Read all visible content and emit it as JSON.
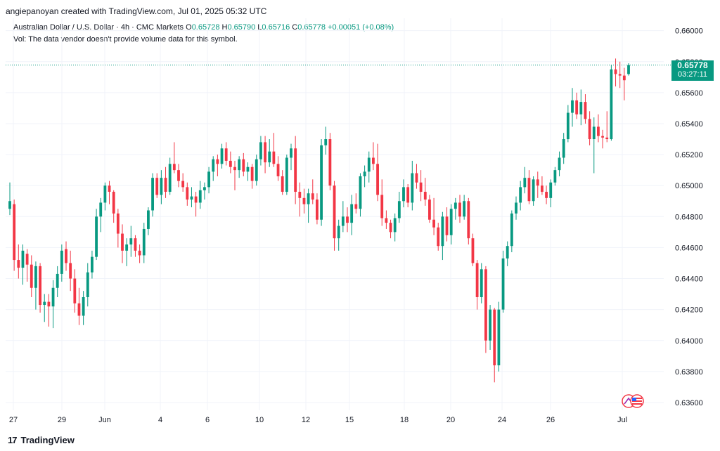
{
  "header": {
    "creator_line": "angiepanoyan created with TradingView.com, Jul 01, 2025 05:32 UTC"
  },
  "symbol_line": {
    "name": "Australian Dollar / U.S. Dollar · 4h · CMC Markets",
    "open_label": "O",
    "open": "0.65728",
    "high_label": "H",
    "high": "0.65790",
    "low_label": "L",
    "low": "0.65716",
    "close_label": "C",
    "close": "0.65778",
    "change": "+0.00051 (+0.08%)"
  },
  "vol_note": "Vol: The data vendor doesn't provide volume data for this symbol.",
  "last_price_tag": {
    "price": "0.65778",
    "countdown": "03:27:11"
  },
  "brand": {
    "name": "TradingView"
  },
  "colors": {
    "up": "#089981",
    "down": "#f23645",
    "grid": "#f0f3fa",
    "axis_text": "#131722"
  },
  "chart_data": {
    "type": "candlestick",
    "ylim": [
      0.6355,
      0.6608
    ],
    "y_ticks": [
      "0.66000",
      "0.65800",
      "0.65600",
      "0.65400",
      "0.65200",
      "0.65000",
      "0.64800",
      "0.64600",
      "0.64400",
      "0.64200",
      "0.64000",
      "0.63800",
      "0.63600"
    ],
    "x_ticks": [
      "27",
      "29",
      "Jun",
      "4",
      "6",
      "10",
      "12",
      "15",
      "18",
      "20",
      "24",
      "26",
      "Jul"
    ],
    "last_price": 0.65778,
    "candles": [
      {
        "o": 0.6485,
        "h": 0.6502,
        "l": 0.6481,
        "c": 0.649
      },
      {
        "o": 0.6488,
        "h": 0.6491,
        "l": 0.6445,
        "c": 0.6452
      },
      {
        "o": 0.6452,
        "h": 0.6462,
        "l": 0.644,
        "c": 0.6447
      },
      {
        "o": 0.6447,
        "h": 0.6462,
        "l": 0.6436,
        "c": 0.6458
      },
      {
        "o": 0.6456,
        "h": 0.6459,
        "l": 0.6438,
        "c": 0.6449
      },
      {
        "o": 0.6449,
        "h": 0.6455,
        "l": 0.6428,
        "c": 0.6434
      },
      {
        "o": 0.6434,
        "h": 0.6451,
        "l": 0.642,
        "c": 0.6448
      },
      {
        "o": 0.6448,
        "h": 0.645,
        "l": 0.6418,
        "c": 0.6423
      },
      {
        "o": 0.6423,
        "h": 0.643,
        "l": 0.6412,
        "c": 0.6425
      },
      {
        "o": 0.6425,
        "h": 0.643,
        "l": 0.6409,
        "c": 0.6422
      },
      {
        "o": 0.6422,
        "h": 0.6439,
        "l": 0.6408,
        "c": 0.6434
      },
      {
        "o": 0.6434,
        "h": 0.6448,
        "l": 0.6428,
        "c": 0.6443
      },
      {
        "o": 0.6443,
        "h": 0.6462,
        "l": 0.6438,
        "c": 0.6458
      },
      {
        "o": 0.6459,
        "h": 0.6464,
        "l": 0.6445,
        "c": 0.645
      },
      {
        "o": 0.645,
        "h": 0.6458,
        "l": 0.6432,
        "c": 0.644
      },
      {
        "o": 0.644,
        "h": 0.6446,
        "l": 0.6418,
        "c": 0.6424
      },
      {
        "o": 0.6424,
        "h": 0.6434,
        "l": 0.641,
        "c": 0.6416
      },
      {
        "o": 0.6416,
        "h": 0.6432,
        "l": 0.641,
        "c": 0.6428
      },
      {
        "o": 0.6428,
        "h": 0.645,
        "l": 0.6422,
        "c": 0.6444
      },
      {
        "o": 0.6444,
        "h": 0.6458,
        "l": 0.644,
        "c": 0.6454
      },
      {
        "o": 0.6454,
        "h": 0.6485,
        "l": 0.6452,
        "c": 0.648
      },
      {
        "o": 0.648,
        "h": 0.6492,
        "l": 0.647,
        "c": 0.6489
      },
      {
        "o": 0.6489,
        "h": 0.6502,
        "l": 0.6484,
        "c": 0.65
      },
      {
        "o": 0.65,
        "h": 0.6503,
        "l": 0.6488,
        "c": 0.6496
      },
      {
        "o": 0.6496,
        "h": 0.6497,
        "l": 0.6476,
        "c": 0.6482
      },
      {
        "o": 0.6482,
        "h": 0.6485,
        "l": 0.646,
        "c": 0.6469
      },
      {
        "o": 0.6469,
        "h": 0.6475,
        "l": 0.645,
        "c": 0.6458
      },
      {
        "o": 0.6458,
        "h": 0.6466,
        "l": 0.6448,
        "c": 0.6462
      },
      {
        "o": 0.6462,
        "h": 0.6474,
        "l": 0.6454,
        "c": 0.6466
      },
      {
        "o": 0.6466,
        "h": 0.6468,
        "l": 0.6454,
        "c": 0.6458
      },
      {
        "o": 0.6458,
        "h": 0.6462,
        "l": 0.645,
        "c": 0.6455
      },
      {
        "o": 0.6455,
        "h": 0.6476,
        "l": 0.645,
        "c": 0.6472
      },
      {
        "o": 0.6472,
        "h": 0.6486,
        "l": 0.6468,
        "c": 0.6484
      },
      {
        "o": 0.6484,
        "h": 0.6508,
        "l": 0.648,
        "c": 0.6505
      },
      {
        "o": 0.6505,
        "h": 0.6508,
        "l": 0.6492,
        "c": 0.6494
      },
      {
        "o": 0.6494,
        "h": 0.651,
        "l": 0.6488,
        "c": 0.6505
      },
      {
        "o": 0.6505,
        "h": 0.6512,
        "l": 0.6492,
        "c": 0.6496
      },
      {
        "o": 0.6496,
        "h": 0.6518,
        "l": 0.6494,
        "c": 0.6514
      },
      {
        "o": 0.6514,
        "h": 0.6528,
        "l": 0.6508,
        "c": 0.651
      },
      {
        "o": 0.651,
        "h": 0.6514,
        "l": 0.6499,
        "c": 0.6503
      },
      {
        "o": 0.6503,
        "h": 0.6508,
        "l": 0.6496,
        "c": 0.6499
      },
      {
        "o": 0.6499,
        "h": 0.6502,
        "l": 0.6487,
        "c": 0.6491
      },
      {
        "o": 0.6491,
        "h": 0.6499,
        "l": 0.6486,
        "c": 0.6493
      },
      {
        "o": 0.6493,
        "h": 0.6496,
        "l": 0.648,
        "c": 0.6489
      },
      {
        "o": 0.6489,
        "h": 0.6503,
        "l": 0.6485,
        "c": 0.6497
      },
      {
        "o": 0.6497,
        "h": 0.6502,
        "l": 0.6491,
        "c": 0.6499
      },
      {
        "o": 0.6499,
        "h": 0.6512,
        "l": 0.6495,
        "c": 0.6509
      },
      {
        "o": 0.6509,
        "h": 0.6519,
        "l": 0.6503,
        "c": 0.6517
      },
      {
        "o": 0.6517,
        "h": 0.652,
        "l": 0.6506,
        "c": 0.6514
      },
      {
        "o": 0.6514,
        "h": 0.6527,
        "l": 0.6511,
        "c": 0.6524
      },
      {
        "o": 0.6524,
        "h": 0.6528,
        "l": 0.6513,
        "c": 0.6516
      },
      {
        "o": 0.6516,
        "h": 0.6522,
        "l": 0.6508,
        "c": 0.6512
      },
      {
        "o": 0.6512,
        "h": 0.6516,
        "l": 0.6497,
        "c": 0.651
      },
      {
        "o": 0.651,
        "h": 0.6519,
        "l": 0.6505,
        "c": 0.6517
      },
      {
        "o": 0.6517,
        "h": 0.6521,
        "l": 0.6506,
        "c": 0.6509
      },
      {
        "o": 0.6509,
        "h": 0.6515,
        "l": 0.6503,
        "c": 0.6512
      },
      {
        "o": 0.6512,
        "h": 0.6514,
        "l": 0.6498,
        "c": 0.6503
      },
      {
        "o": 0.6503,
        "h": 0.652,
        "l": 0.65,
        "c": 0.6517
      },
      {
        "o": 0.6517,
        "h": 0.6532,
        "l": 0.6513,
        "c": 0.6528
      },
      {
        "o": 0.6528,
        "h": 0.6532,
        "l": 0.6508,
        "c": 0.6515
      },
      {
        "o": 0.6515,
        "h": 0.653,
        "l": 0.6512,
        "c": 0.6522
      },
      {
        "o": 0.6522,
        "h": 0.6534,
        "l": 0.6512,
        "c": 0.6514
      },
      {
        "o": 0.6514,
        "h": 0.6519,
        "l": 0.6503,
        "c": 0.6506
      },
      {
        "o": 0.6506,
        "h": 0.651,
        "l": 0.6494,
        "c": 0.6496
      },
      {
        "o": 0.6496,
        "h": 0.652,
        "l": 0.6494,
        "c": 0.6518
      },
      {
        "o": 0.6518,
        "h": 0.6527,
        "l": 0.651,
        "c": 0.6524
      },
      {
        "o": 0.6524,
        "h": 0.6532,
        "l": 0.6488,
        "c": 0.6496
      },
      {
        "o": 0.6496,
        "h": 0.6502,
        "l": 0.648,
        "c": 0.6492
      },
      {
        "o": 0.6492,
        "h": 0.6498,
        "l": 0.6482,
        "c": 0.6488
      },
      {
        "o": 0.6488,
        "h": 0.6498,
        "l": 0.6476,
        "c": 0.6495
      },
      {
        "o": 0.6495,
        "h": 0.6504,
        "l": 0.6488,
        "c": 0.6491
      },
      {
        "o": 0.6491,
        "h": 0.6495,
        "l": 0.6475,
        "c": 0.6478
      },
      {
        "o": 0.6478,
        "h": 0.653,
        "l": 0.6474,
        "c": 0.6526
      },
      {
        "o": 0.6526,
        "h": 0.6538,
        "l": 0.652,
        "c": 0.653
      },
      {
        "o": 0.653,
        "h": 0.6534,
        "l": 0.6497,
        "c": 0.65
      },
      {
        "o": 0.65,
        "h": 0.6503,
        "l": 0.6458,
        "c": 0.6466
      },
      {
        "o": 0.6466,
        "h": 0.6478,
        "l": 0.6458,
        "c": 0.6474
      },
      {
        "o": 0.6474,
        "h": 0.649,
        "l": 0.647,
        "c": 0.648
      },
      {
        "o": 0.648,
        "h": 0.6486,
        "l": 0.647,
        "c": 0.6476
      },
      {
        "o": 0.6476,
        "h": 0.6494,
        "l": 0.6468,
        "c": 0.6488
      },
      {
        "o": 0.6488,
        "h": 0.6495,
        "l": 0.6482,
        "c": 0.6485
      },
      {
        "o": 0.6485,
        "h": 0.6508,
        "l": 0.648,
        "c": 0.6506
      },
      {
        "o": 0.6506,
        "h": 0.6513,
        "l": 0.6499,
        "c": 0.6509
      },
      {
        "o": 0.6509,
        "h": 0.6522,
        "l": 0.6502,
        "c": 0.6518
      },
      {
        "o": 0.6518,
        "h": 0.6528,
        "l": 0.651,
        "c": 0.6514
      },
      {
        "o": 0.6514,
        "h": 0.6527,
        "l": 0.649,
        "c": 0.6494
      },
      {
        "o": 0.6494,
        "h": 0.6504,
        "l": 0.6474,
        "c": 0.6479
      },
      {
        "o": 0.6479,
        "h": 0.6484,
        "l": 0.6472,
        "c": 0.6476
      },
      {
        "o": 0.6476,
        "h": 0.6478,
        "l": 0.6466,
        "c": 0.647
      },
      {
        "o": 0.647,
        "h": 0.6482,
        "l": 0.6464,
        "c": 0.6479
      },
      {
        "o": 0.6479,
        "h": 0.6496,
        "l": 0.6476,
        "c": 0.649
      },
      {
        "o": 0.649,
        "h": 0.6504,
        "l": 0.6486,
        "c": 0.6499
      },
      {
        "o": 0.6499,
        "h": 0.6501,
        "l": 0.6486,
        "c": 0.6489
      },
      {
        "o": 0.6489,
        "h": 0.6516,
        "l": 0.6484,
        "c": 0.6508
      },
      {
        "o": 0.6508,
        "h": 0.6514,
        "l": 0.6498,
        "c": 0.6502
      },
      {
        "o": 0.6502,
        "h": 0.651,
        "l": 0.649,
        "c": 0.6496
      },
      {
        "o": 0.6496,
        "h": 0.6505,
        "l": 0.6487,
        "c": 0.6491
      },
      {
        "o": 0.6491,
        "h": 0.6494,
        "l": 0.6476,
        "c": 0.6478
      },
      {
        "o": 0.6478,
        "h": 0.6492,
        "l": 0.6468,
        "c": 0.6473
      },
      {
        "o": 0.6473,
        "h": 0.6476,
        "l": 0.6458,
        "c": 0.6461
      },
      {
        "o": 0.6461,
        "h": 0.6483,
        "l": 0.6452,
        "c": 0.648
      },
      {
        "o": 0.648,
        "h": 0.6486,
        "l": 0.6464,
        "c": 0.6468
      },
      {
        "o": 0.6468,
        "h": 0.6488,
        "l": 0.6462,
        "c": 0.6485
      },
      {
        "o": 0.6485,
        "h": 0.6492,
        "l": 0.6478,
        "c": 0.6489
      },
      {
        "o": 0.6489,
        "h": 0.6494,
        "l": 0.6476,
        "c": 0.648
      },
      {
        "o": 0.648,
        "h": 0.6494,
        "l": 0.6478,
        "c": 0.649
      },
      {
        "o": 0.649,
        "h": 0.6492,
        "l": 0.6462,
        "c": 0.6466
      },
      {
        "o": 0.6466,
        "h": 0.6469,
        "l": 0.6448,
        "c": 0.645
      },
      {
        "o": 0.645,
        "h": 0.6452,
        "l": 0.642,
        "c": 0.6428
      },
      {
        "o": 0.6428,
        "h": 0.645,
        "l": 0.6424,
        "c": 0.6446
      },
      {
        "o": 0.6446,
        "h": 0.6448,
        "l": 0.6392,
        "c": 0.64
      },
      {
        "o": 0.64,
        "h": 0.6423,
        "l": 0.6394,
        "c": 0.642
      },
      {
        "o": 0.642,
        "h": 0.6421,
        "l": 0.6373,
        "c": 0.6384
      },
      {
        "o": 0.6384,
        "h": 0.6425,
        "l": 0.638,
        "c": 0.642
      },
      {
        "o": 0.642,
        "h": 0.6458,
        "l": 0.6418,
        "c": 0.6453
      },
      {
        "o": 0.6453,
        "h": 0.6464,
        "l": 0.6448,
        "c": 0.6461
      },
      {
        "o": 0.6461,
        "h": 0.6484,
        "l": 0.6457,
        "c": 0.6482
      },
      {
        "o": 0.6482,
        "h": 0.6493,
        "l": 0.6478,
        "c": 0.6489
      },
      {
        "o": 0.6489,
        "h": 0.6503,
        "l": 0.6484,
        "c": 0.6499
      },
      {
        "o": 0.6499,
        "h": 0.6512,
        "l": 0.6495,
        "c": 0.6505
      },
      {
        "o": 0.6505,
        "h": 0.651,
        "l": 0.6488,
        "c": 0.649
      },
      {
        "o": 0.649,
        "h": 0.6506,
        "l": 0.6487,
        "c": 0.6504
      },
      {
        "o": 0.6504,
        "h": 0.6509,
        "l": 0.6492,
        "c": 0.65
      },
      {
        "o": 0.65,
        "h": 0.6506,
        "l": 0.6494,
        "c": 0.6496
      },
      {
        "o": 0.6496,
        "h": 0.65,
        "l": 0.6488,
        "c": 0.6492
      },
      {
        "o": 0.6492,
        "h": 0.6504,
        "l": 0.6486,
        "c": 0.6502
      },
      {
        "o": 0.6502,
        "h": 0.6512,
        "l": 0.65,
        "c": 0.651
      },
      {
        "o": 0.651,
        "h": 0.6522,
        "l": 0.6506,
        "c": 0.6518
      },
      {
        "o": 0.6518,
        "h": 0.6534,
        "l": 0.6514,
        "c": 0.653
      },
      {
        "o": 0.653,
        "h": 0.6552,
        "l": 0.6528,
        "c": 0.6547
      },
      {
        "o": 0.6547,
        "h": 0.6563,
        "l": 0.6538,
        "c": 0.6555
      },
      {
        "o": 0.6555,
        "h": 0.656,
        "l": 0.6543,
        "c": 0.6546
      },
      {
        "o": 0.6546,
        "h": 0.6562,
        "l": 0.6539,
        "c": 0.6554
      },
      {
        "o": 0.6554,
        "h": 0.6559,
        "l": 0.654,
        "c": 0.6543
      },
      {
        "o": 0.6543,
        "h": 0.6548,
        "l": 0.6526,
        "c": 0.653
      },
      {
        "o": 0.653,
        "h": 0.6544,
        "l": 0.6508,
        "c": 0.6538
      },
      {
        "o": 0.6538,
        "h": 0.6546,
        "l": 0.6528,
        "c": 0.6532
      },
      {
        "o": 0.6532,
        "h": 0.6536,
        "l": 0.6524,
        "c": 0.6531
      },
      {
        "o": 0.6531,
        "h": 0.6548,
        "l": 0.6528,
        "c": 0.653
      },
      {
        "o": 0.653,
        "h": 0.6578,
        "l": 0.6529,
        "c": 0.6575
      },
      {
        "o": 0.6575,
        "h": 0.6582,
        "l": 0.6564,
        "c": 0.6572
      },
      {
        "o": 0.6572,
        "h": 0.658,
        "l": 0.6563,
        "c": 0.6571
      },
      {
        "o": 0.6571,
        "h": 0.6576,
        "l": 0.6555,
        "c": 0.6568
      },
      {
        "o": 0.6572,
        "h": 0.6579,
        "l": 0.6571,
        "c": 0.65778
      }
    ]
  }
}
